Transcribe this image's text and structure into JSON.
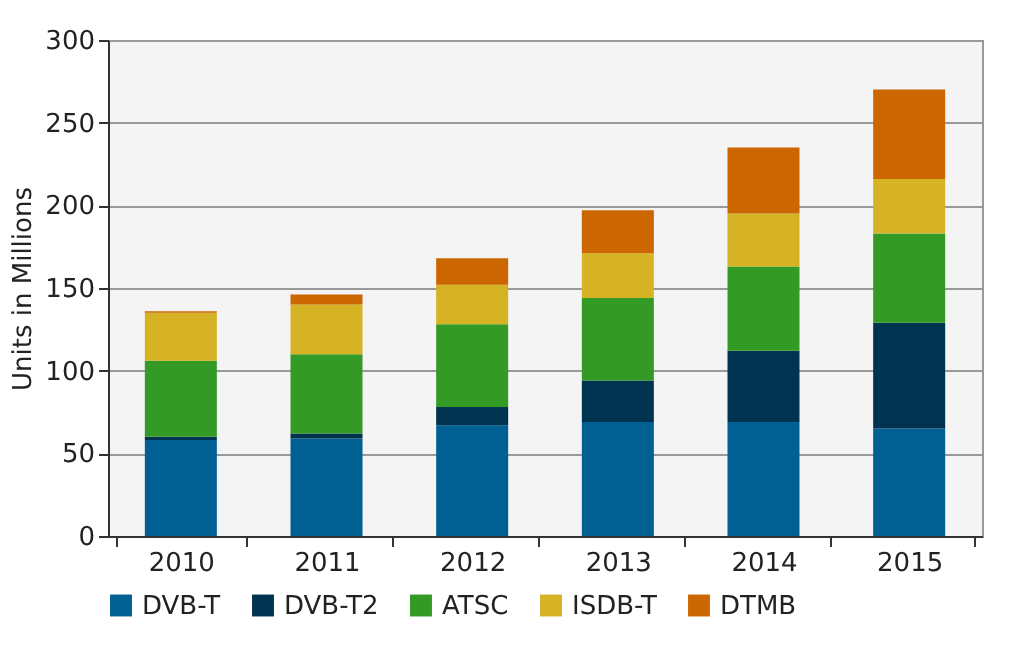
{
  "chart_data": {
    "type": "bar",
    "stacked": true,
    "ylabel": "Units in Millions",
    "categories": [
      "2010",
      "2011",
      "2012",
      "2013",
      "2014",
      "2015"
    ],
    "series": [
      {
        "name": "DVB-T",
        "color": "#005f93",
        "values": [
          58,
          59,
          67,
          69,
          69,
          65
        ]
      },
      {
        "name": "DVB-T2",
        "color": "#003350",
        "values": [
          2,
          3,
          11,
          25,
          43,
          64
        ]
      },
      {
        "name": "ATSC",
        "color": "#339a26",
        "values": [
          46,
          48,
          50,
          50,
          51,
          54
        ]
      },
      {
        "name": "ISDB-T",
        "color": "#d6b225",
        "values": [
          29,
          30,
          24,
          27,
          32,
          33
        ]
      },
      {
        "name": "DTMB",
        "color": "#cc6600",
        "values": [
          1,
          6,
          16,
          26,
          40,
          54
        ]
      }
    ],
    "ylim": [
      0,
      300
    ],
    "yticks": [
      0,
      50,
      100,
      150,
      200,
      250,
      300
    ],
    "grid": "y",
    "legend": "bottom"
  }
}
